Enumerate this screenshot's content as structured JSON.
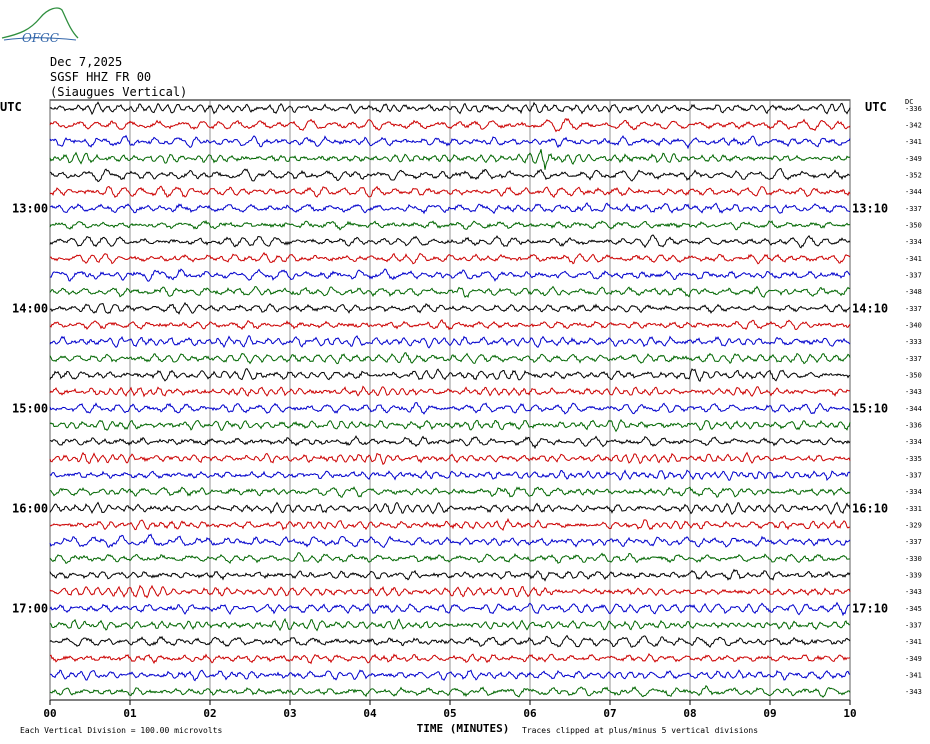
{
  "header": {
    "logo_text": "OFGC",
    "date": "Dec 7,2025",
    "station": "SGSF HHZ FR 00",
    "location": "(Siaugues Vertical)",
    "utc_left": "UTC",
    "utc_right": "UTC",
    "dc_label": "DC"
  },
  "footer": {
    "scale_note": "Each Vertical Division =  100.00 microvolts",
    "clip_note": "Traces clipped at plus/minus 5 vertical divisions"
  },
  "colors": {
    "trace": [
      "#000000",
      "#cc0000",
      "#0000cc",
      "#006600"
    ],
    "grid": "#777777"
  },
  "chart_data": {
    "type": "line",
    "title": "",
    "xlabel": "TIME (MINUTES)",
    "ylabel": "",
    "x_ticks": [
      "00",
      "01",
      "02",
      "03",
      "04",
      "05",
      "06",
      "07",
      "08",
      "09",
      "10"
    ],
    "x_range": [
      0,
      10
    ],
    "grid": true,
    "trace_count": 36,
    "left_time_labels": [
      {
        "row": 6,
        "label": "13:00"
      },
      {
        "row": 12,
        "label": "14:00"
      },
      {
        "row": 18,
        "label": "15:00"
      },
      {
        "row": 24,
        "label": "16:00"
      },
      {
        "row": 30,
        "label": "17:00"
      }
    ],
    "right_time_labels": [
      {
        "row": 6,
        "label": "13:10"
      },
      {
        "row": 12,
        "label": "14:10"
      },
      {
        "row": 18,
        "label": "15:10"
      },
      {
        "row": 24,
        "label": "16:10"
      },
      {
        "row": 30,
        "label": "17:10"
      }
    ],
    "dc_offsets": [
      "-336",
      "-342",
      "-341",
      "-349",
      "-352",
      "-344",
      "-337",
      "-350",
      "-334",
      "-341",
      "-337",
      "-348",
      "-337",
      "-340",
      "-333",
      "-337",
      "-350",
      "-343",
      "-344",
      "-336",
      "-334",
      "-335",
      "-337",
      "-334",
      "-331",
      "-329",
      "-337",
      "-330",
      "-339",
      "-343",
      "-345",
      "-337",
      "-341",
      "-349",
      "-341",
      "-343"
    ],
    "events": [
      {
        "row": 3,
        "minute": 6.2,
        "note": "small local burst"
      }
    ]
  }
}
